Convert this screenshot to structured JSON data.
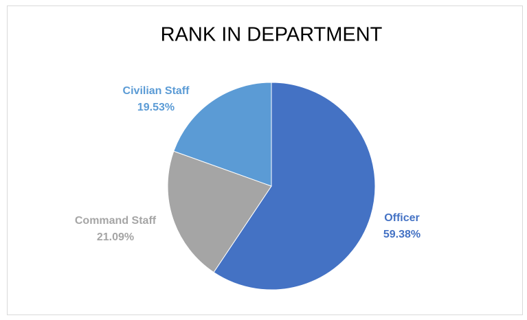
{
  "chart_data": {
    "type": "pie",
    "title": "RANK IN DEPARTMENT",
    "categories": [
      "Officer",
      "Command Staff",
      "Civilian Staff"
    ],
    "values": [
      59.38,
      21.09,
      19.53
    ],
    "value_labels": [
      "59.38%",
      "21.09%",
      "19.53%"
    ],
    "colors": [
      "#4472c4",
      "#a5a5a5",
      "#5b9bd5"
    ]
  }
}
